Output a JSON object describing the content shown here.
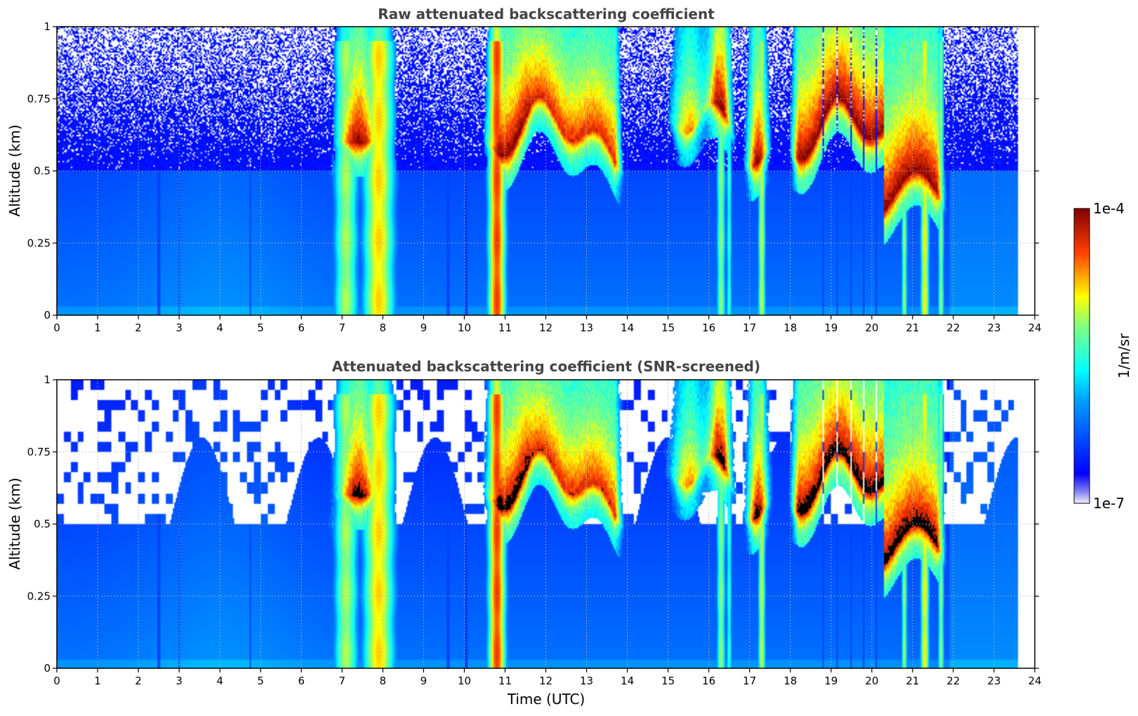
{
  "chart_data": [
    {
      "type": "heatmap",
      "title": "Raw attenuated backscattering coefficient",
      "xlabel": "",
      "ylabel": "Altitude (km)",
      "xlim": [
        0,
        24
      ],
      "ylim": [
        0,
        1
      ],
      "xticks": [
        "0",
        "1",
        "2",
        "3",
        "4",
        "5",
        "6",
        "7",
        "8",
        "9",
        "10",
        "11",
        "12",
        "13",
        "14",
        "15",
        "16",
        "17",
        "18",
        "19",
        "20",
        "21",
        "22",
        "23",
        "24"
      ],
      "yticks": [
        "0",
        "0.25",
        "0.5",
        "0.75",
        "1"
      ],
      "grid": true,
      "screened": false
    },
    {
      "type": "heatmap",
      "title": "Attenuated backscattering coefficient (SNR-screened)",
      "xlabel": "Time (UTC)",
      "ylabel": "Altitude (km)",
      "xlim": [
        0,
        24
      ],
      "ylim": [
        0,
        1
      ],
      "xticks": [
        "0",
        "1",
        "2",
        "3",
        "4",
        "5",
        "6",
        "7",
        "8",
        "9",
        "10",
        "11",
        "12",
        "13",
        "14",
        "15",
        "16",
        "17",
        "18",
        "19",
        "20",
        "21",
        "22",
        "23",
        "24"
      ],
      "yticks": [
        "0",
        "0.25",
        "0.5",
        "0.75",
        "1"
      ],
      "grid": true,
      "screened": true
    }
  ],
  "colorbar": {
    "label": "1/m/sr",
    "max_label": "1e-4",
    "min_label": "1e-7",
    "scale": "log",
    "colormap": "jet"
  },
  "data_end_hour": 23.6,
  "colors": {
    "axis": "#000000",
    "title": "#444444",
    "grid": "#b0b0b0"
  }
}
